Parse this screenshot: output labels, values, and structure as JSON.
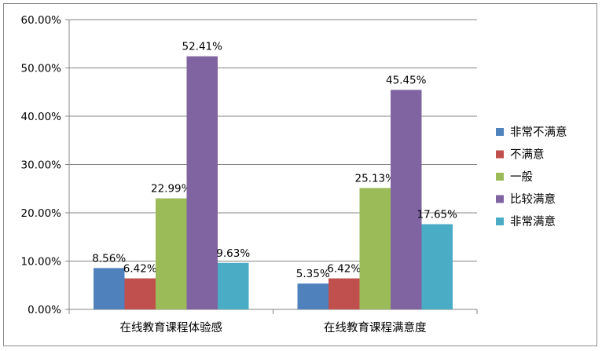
{
  "chart_data": {
    "type": "bar",
    "categories": [
      "在线教育课程体验感",
      "在线教育课程满意度"
    ],
    "series": [
      {
        "name": "非常不满意",
        "values": [
          8.56,
          5.35
        ],
        "labels": [
          "8.56%",
          "5.35%"
        ],
        "color": "#4f81bd"
      },
      {
        "name": "不满意",
        "values": [
          6.42,
          6.42
        ],
        "labels": [
          "6.42%",
          "6.42%"
        ],
        "color": "#c0504d"
      },
      {
        "name": "一般",
        "values": [
          22.99,
          25.13
        ],
        "labels": [
          "22.99%",
          "25.13%"
        ],
        "color": "#9bbb59"
      },
      {
        "name": "比较满意",
        "values": [
          52.41,
          45.45
        ],
        "labels": [
          "52.41%",
          "45.45%"
        ],
        "color": "#8064a2"
      },
      {
        "name": "非常满意",
        "values": [
          9.63,
          17.65
        ],
        "labels": [
          "9.63%",
          "17.65%"
        ],
        "color": "#4bacc6"
      }
    ],
    "ylim": [
      0,
      60
    ],
    "yticks": [
      "0.00%",
      "10.00%",
      "20.00%",
      "30.00%",
      "40.00%",
      "50.00%",
      "60.00%"
    ],
    "grid": true,
    "legend": "right",
    "title": "",
    "xlabel": "",
    "ylabel": ""
  }
}
